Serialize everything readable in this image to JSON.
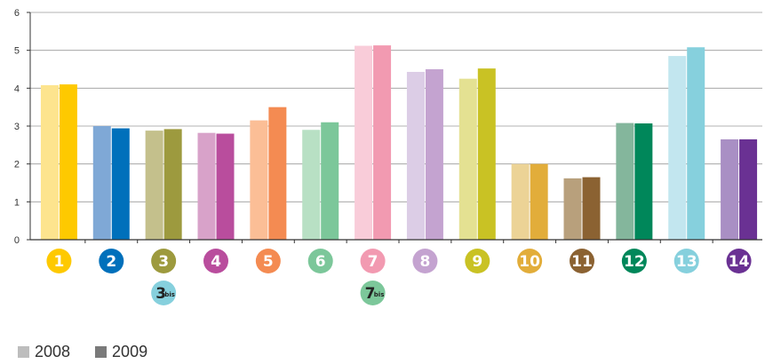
{
  "chart_data": {
    "type": "bar",
    "categories": [
      "1",
      "2",
      "3",
      "4",
      "5",
      "6",
      "7",
      "8",
      "9",
      "10",
      "11",
      "12",
      "13",
      "14"
    ],
    "series": [
      {
        "name": "2008",
        "values": [
          4.08,
          3.0,
          2.88,
          2.82,
          3.15,
          2.9,
          5.12,
          4.43,
          4.25,
          2.0,
          1.62,
          3.08,
          4.85,
          2.65
        ]
      },
      {
        "name": "2009",
        "values": [
          4.1,
          2.94,
          2.92,
          2.8,
          3.5,
          3.1,
          5.13,
          4.5,
          4.52,
          2.0,
          1.65,
          3.07,
          5.08,
          2.65
        ]
      }
    ],
    "colors_2008": [
      "#fde48e",
      "#7fa8d6",
      "#c4c08c",
      "#d8a2c9",
      "#fbbe96",
      "#b8e0c4",
      "#f9ccd9",
      "#dccde6",
      "#e4e192",
      "#ecd396",
      "#b8a07c",
      "#84b69c",
      "#c2e6ef",
      "#a98fc4"
    ],
    "colors_2009": [
      "#fec900",
      "#0070bb",
      "#9d9a3e",
      "#b94d9d",
      "#f48b52",
      "#7cc79a",
      "#f29ab1",
      "#c4a3d0",
      "#c9c224",
      "#e2ad3a",
      "#8b6232",
      "#00875a",
      "#86d0dd",
      "#6a3193"
    ],
    "ylim": [
      0,
      6
    ],
    "yticks": [
      0,
      1,
      2,
      3,
      4,
      5,
      6
    ],
    "markers": [
      {
        "label": "1",
        "color": "#fec900",
        "dark_text": false
      },
      {
        "label": "2",
        "color": "#0070bb",
        "dark_text": false
      },
      {
        "label": "3",
        "color": "#9d9a3e",
        "dark_text": false
      },
      {
        "label": "4",
        "color": "#b94d9d",
        "dark_text": false
      },
      {
        "label": "5",
        "color": "#f48b52",
        "dark_text": false
      },
      {
        "label": "6",
        "color": "#7cc79a",
        "dark_text": false
      },
      {
        "label": "7",
        "color": "#f29ab1",
        "dark_text": false
      },
      {
        "label": "8",
        "color": "#c4a3d0",
        "dark_text": false
      },
      {
        "label": "9",
        "color": "#c9c224",
        "dark_text": false
      },
      {
        "label": "10",
        "color": "#e2ad3a",
        "dark_text": false
      },
      {
        "label": "11",
        "color": "#8b6232",
        "dark_text": false
      },
      {
        "label": "12",
        "color": "#00875a",
        "dark_text": false
      },
      {
        "label": "13",
        "color": "#86d0dd",
        "dark_text": false
      },
      {
        "label": "14",
        "color": "#6a3193",
        "dark_text": false
      }
    ],
    "sub_markers": [
      {
        "under": 2,
        "label": "3",
        "sup": "bis",
        "color": "#86d0dd"
      },
      {
        "under": 6,
        "label": "7",
        "sup": "bis",
        "color": "#7cc79a"
      }
    ],
    "grid": "horizontal",
    "legend": {
      "position": "bottom-left",
      "items": [
        {
          "label": "2008",
          "color": "#bdbdbd"
        },
        {
          "label": "2009",
          "color": "#7a7a7a"
        }
      ]
    }
  }
}
